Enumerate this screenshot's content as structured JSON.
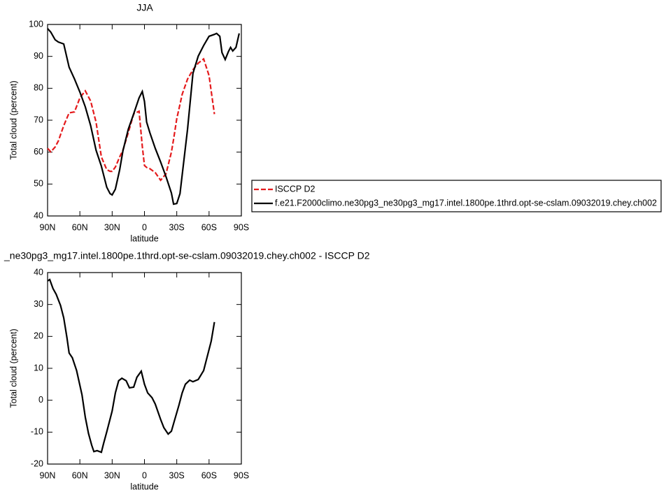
{
  "chart_data": [
    {
      "type": "line",
      "title": "JJA",
      "xlabel": "latitude",
      "ylabel": "Total cloud (percent)",
      "x": [
        90,
        87,
        83,
        80,
        75,
        70,
        65,
        60,
        55,
        50,
        45,
        40,
        35,
        32,
        30,
        27,
        23,
        20,
        15,
        10,
        5,
        2,
        0,
        -2,
        -5,
        -10,
        -15,
        -20,
        -25,
        -27,
        -30,
        -33,
        -35,
        -40,
        -45,
        -50,
        -55,
        -60,
        -65,
        -67,
        -70,
        -72,
        -75,
        -78,
        -80,
        -82,
        -85,
        -88
      ],
      "series": [
        {
          "name": "ISCCP D2",
          "color": "#e41a1c",
          "dash": "dashed",
          "values": [
            61.2,
            60.1,
            61.6,
            63.5,
            68.3,
            72.3,
            72.6,
            77,
            79.2,
            76,
            69.4,
            58.5,
            54.5,
            54,
            54,
            55.3,
            58.5,
            60.6,
            66.1,
            72,
            72.8,
            61.8,
            55.8,
            55.2,
            54.8,
            53.6,
            51.2,
            53.2,
            60,
            64,
            70.5,
            75,
            78.1,
            82.9,
            85.8,
            87.9,
            89.2,
            84,
            71.9,
            null,
            null,
            null,
            null,
            null,
            null,
            null,
            null,
            null
          ]
        },
        {
          "name": "f.e21.F2000climo.ne30pg3_ne30pg3_mg17.intel.1800pe.1thrd.opt-se-cslam.09032019.chey.ch002",
          "color": "#000000",
          "dash": "solid",
          "values": [
            98.7,
            97.6,
            95.2,
            94.5,
            93.9,
            86.6,
            82.9,
            78.8,
            74.2,
            68.3,
            60.6,
            55.6,
            49,
            47,
            46.6,
            48.4,
            54.5,
            60.4,
            67.2,
            72,
            77,
            79,
            75.9,
            69.4,
            66.1,
            61.2,
            56.9,
            52.3,
            47.2,
            43.7,
            43.9,
            47,
            52.8,
            67.2,
            84.7,
            90.1,
            93.4,
            96.3,
            96.9,
            97.2,
            96.3,
            91.2,
            89,
            91.5,
            92.8,
            91.7,
            92.8,
            97.2
          ]
        }
      ],
      "xlim": [
        90,
        -90
      ],
      "xticks": [
        {
          "value": 90,
          "label": "90N"
        },
        {
          "value": 60,
          "label": "60N"
        },
        {
          "value": 30,
          "label": "30N"
        },
        0,
        {
          "value": -30,
          "label": "30S"
        },
        {
          "value": -60,
          "label": "60S"
        },
        {
          "value": -90,
          "label": "90S"
        }
      ],
      "ylim": [
        40,
        100
      ],
      "yticks": [
        40,
        50,
        60,
        70,
        80,
        90,
        100
      ],
      "legend": "right"
    },
    {
      "type": "line",
      "title": "_ne30pg3_mg17.intel.1800pe.1thrd.opt-se-cslam.09032019.chey.ch002 - ISCCP D2",
      "xlabel": "latitude",
      "ylabel": "Total cloud (percent)",
      "x": [
        90,
        88,
        85,
        82,
        78,
        75,
        72,
        70,
        67,
        63,
        58,
        55,
        52,
        49,
        47,
        44,
        40,
        38,
        35,
        30,
        27,
        24,
        21,
        17,
        14,
        10,
        7,
        3,
        0,
        -3,
        -7,
        -10,
        -15,
        -18,
        -22,
        -25,
        -28,
        -32,
        -35,
        -38,
        -42,
        -45,
        -50,
        -55,
        -58,
        -62,
        -65
      ],
      "series": [
        {
          "color": "#000000",
          "dash": "solid",
          "values": [
            37.4,
            37.8,
            35,
            33.2,
            29.7,
            25.8,
            19.6,
            14.8,
            13.3,
            9.3,
            1.7,
            -5.3,
            -10.4,
            -14.1,
            -16.1,
            -15.8,
            -16.3,
            -13.6,
            -9.9,
            -3.4,
            2.3,
            6.1,
            6.9,
            6.1,
            3.9,
            4.1,
            7.2,
            9.1,
            5,
            2.3,
            0.8,
            -1.2,
            -6,
            -8.6,
            -10.6,
            -9.7,
            -6.2,
            -1.6,
            2.3,
            5,
            6.3,
            5.8,
            6.5,
            9.3,
            13.3,
            18.5,
            24.5
          ]
        }
      ],
      "xlim": [
        90,
        -90
      ],
      "xticks": [
        {
          "value": 90,
          "label": "90N"
        },
        {
          "value": 60,
          "label": "60N"
        },
        {
          "value": 30,
          "label": "30N"
        },
        0,
        {
          "value": -30,
          "label": "30S"
        },
        {
          "value": -60,
          "label": "60S"
        },
        {
          "value": -90,
          "label": "90S"
        }
      ],
      "ylim": [
        -20,
        40
      ],
      "yticks": [
        -20,
        -10,
        0,
        10,
        20,
        30,
        40
      ]
    }
  ]
}
